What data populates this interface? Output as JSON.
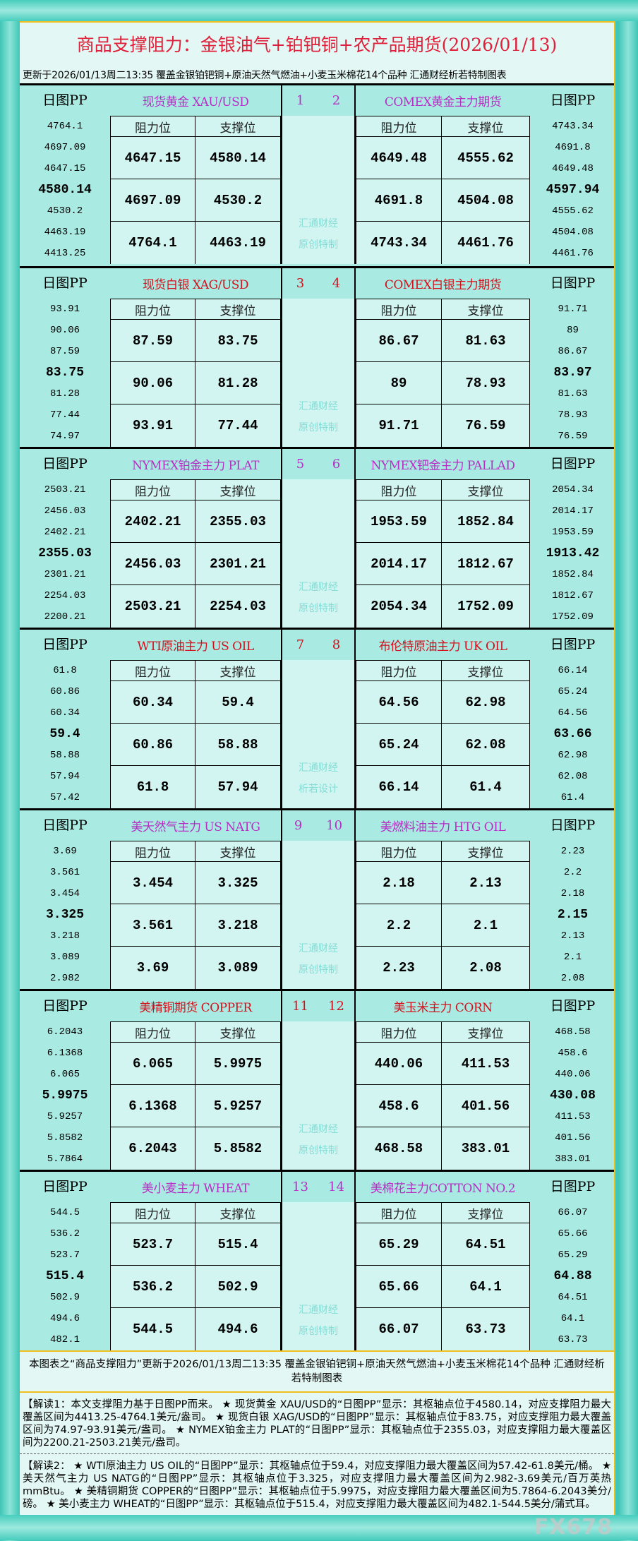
{
  "header": {
    "title": "商品支撑阻力：金银油气+铂钯铜+农产品期货(2026/01/13)",
    "subtitle": "更新于2026/01/13周二13:35  覆盖金银铂钯铜+原油天然气燃油+小麦玉米棉花14个品种  汇通财经析若特制图表"
  },
  "labels": {
    "pp": "日图PP",
    "resistance": "阻力位",
    "support": "支撑位"
  },
  "colors": {
    "purple": "#b62fc4",
    "red": "#d4101c",
    "watermark": "#86dcd6"
  },
  "blocks": [
    {
      "color": "purple",
      "watermark": [
        "汇通财经",
        "原创特制"
      ],
      "left": {
        "name": "现货黄金  XAU/USD",
        "num": "1",
        "pp": [
          "4764.1",
          "4697.09",
          "4647.15",
          "4580.14",
          "4530.2",
          "4463.19",
          "4413.25"
        ],
        "resistance": [
          "4647.15",
          "4697.09",
          "4764.1"
        ],
        "support": [
          "4580.14",
          "4530.2",
          "4463.19"
        ]
      },
      "right": {
        "name": "COMEX黄金主力期货",
        "num": "2",
        "pp": [
          "4743.34",
          "4691.8",
          "4649.48",
          "4597.94",
          "4555.62",
          "4504.08",
          "4461.76"
        ],
        "resistance": [
          "4649.48",
          "4691.8",
          "4743.34"
        ],
        "support": [
          "4555.62",
          "4504.08",
          "4461.76"
        ]
      }
    },
    {
      "color": "red",
      "watermark": [
        "汇通财经",
        "原创特制"
      ],
      "left": {
        "name": "现货白银  XAG/USD",
        "num": "3",
        "pp": [
          "93.91",
          "90.06",
          "87.59",
          "83.75",
          "81.28",
          "77.44",
          "74.97"
        ],
        "resistance": [
          "87.59",
          "90.06",
          "93.91"
        ],
        "support": [
          "83.75",
          "81.28",
          "77.44"
        ]
      },
      "right": {
        "name": "COMEX白银主力期货",
        "num": "4",
        "pp": [
          "91.71",
          "89",
          "86.67",
          "83.97",
          "81.63",
          "78.93",
          "76.59"
        ],
        "resistance": [
          "86.67",
          "89",
          "91.71"
        ],
        "support": [
          "81.63",
          "78.93",
          "76.59"
        ]
      }
    },
    {
      "color": "purple",
      "watermark": [
        "汇通财经",
        "原创特制"
      ],
      "left": {
        "name": "NYMEX铂金主力  PLAT",
        "num": "5",
        "pp": [
          "2503.21",
          "2456.03",
          "2402.21",
          "2355.03",
          "2301.21",
          "2254.03",
          "2200.21"
        ],
        "resistance": [
          "2402.21",
          "2456.03",
          "2503.21"
        ],
        "support": [
          "2355.03",
          "2301.21",
          "2254.03"
        ]
      },
      "right": {
        "name": "NYMEX钯金主力  PALLAD",
        "num": "6",
        "pp": [
          "2054.34",
          "2014.17",
          "1953.59",
          "1913.42",
          "1852.84",
          "1812.67",
          "1752.09"
        ],
        "resistance": [
          "1953.59",
          "2014.17",
          "2054.34"
        ],
        "support": [
          "1852.84",
          "1812.67",
          "1752.09"
        ]
      }
    },
    {
      "color": "red",
      "watermark": [
        "汇通财经",
        "析若设计"
      ],
      "left": {
        "name": "WTI原油主力  US OIL",
        "num": "7",
        "pp": [
          "61.8",
          "60.86",
          "60.34",
          "59.4",
          "58.88",
          "57.94",
          "57.42"
        ],
        "resistance": [
          "60.34",
          "60.86",
          "61.8"
        ],
        "support": [
          "59.4",
          "58.88",
          "57.94"
        ]
      },
      "right": {
        "name": "布伦特原油主力  UK OIL",
        "num": "8",
        "pp": [
          "66.14",
          "65.24",
          "64.56",
          "63.66",
          "62.98",
          "62.08",
          "61.4"
        ],
        "resistance": [
          "64.56",
          "65.24",
          "66.14"
        ],
        "support": [
          "62.98",
          "62.08",
          "61.4"
        ]
      }
    },
    {
      "color": "purple",
      "watermark": [
        "汇通财经",
        "原创特制"
      ],
      "left": {
        "name": "美天然气主力  US NATG",
        "num": "9",
        "pp": [
          "3.69",
          "3.561",
          "3.454",
          "3.325",
          "3.218",
          "3.089",
          "2.982"
        ],
        "resistance": [
          "3.454",
          "3.561",
          "3.69"
        ],
        "support": [
          "3.325",
          "3.218",
          "3.089"
        ]
      },
      "right": {
        "name": "美燃料油主力  HTG OIL",
        "num": "10",
        "pp": [
          "2.23",
          "2.2",
          "2.18",
          "2.15",
          "2.13",
          "2.1",
          "2.08"
        ],
        "resistance": [
          "2.18",
          "2.2",
          "2.23"
        ],
        "support": [
          "2.13",
          "2.1",
          "2.08"
        ]
      }
    },
    {
      "color": "red",
      "watermark": [
        "汇通财经",
        "原创特制"
      ],
      "left": {
        "name": "美精铜期货  COPPER",
        "num": "11",
        "pp": [
          "6.2043",
          "6.1368",
          "6.065",
          "5.9975",
          "5.9257",
          "5.8582",
          "5.7864"
        ],
        "resistance": [
          "6.065",
          "6.1368",
          "6.2043"
        ],
        "support": [
          "5.9975",
          "5.9257",
          "5.8582"
        ]
      },
      "right": {
        "name": "美玉米主力  CORN",
        "num": "12",
        "pp": [
          "468.58",
          "458.6",
          "440.06",
          "430.08",
          "411.53",
          "401.56",
          "383.01"
        ],
        "resistance": [
          "440.06",
          "458.6",
          "468.58"
        ],
        "support": [
          "411.53",
          "401.56",
          "383.01"
        ]
      }
    },
    {
      "color": "purple",
      "watermark": [
        "汇通财经",
        "原创特制"
      ],
      "left": {
        "name": "美小麦主力  WHEAT",
        "num": "13",
        "pp": [
          "544.5",
          "536.2",
          "523.7",
          "515.4",
          "502.9",
          "494.6",
          "482.1"
        ],
        "resistance": [
          "523.7",
          "536.2",
          "544.5"
        ],
        "support": [
          "515.4",
          "502.9",
          "494.6"
        ]
      },
      "right": {
        "name": "美棉花主力COTTON NO.2",
        "num": "14",
        "pp": [
          "66.07",
          "65.66",
          "65.29",
          "64.88",
          "64.51",
          "64.1",
          "63.73"
        ],
        "resistance": [
          "65.29",
          "65.66",
          "66.07"
        ],
        "support": [
          "64.51",
          "64.1",
          "63.73"
        ]
      }
    }
  ],
  "footer": {
    "note": "本图表之“商品支撑阻力”更新于2026/01/13周二13:35 覆盖金银铂钯铜+原油天然气燃油+小麦玉米棉花14个品种 汇通财经析若特制图表",
    "explanation1": "【解读1：本文支撑阻力基于日图PP而来。 ★ 现货黄金 XAU/USD的“日图PP”显示：其枢轴点位于4580.14，对应支撑阻力最大覆盖区间为4413.25-4764.1美元/盎司。 ★ 现货白银 XAG/USD的“日图PP”显示：其枢轴点位于83.75，对应支撑阻力最大覆盖区间为74.97-93.91美元/盎司。 ★ NYMEX铂金主力 PLAT的“日图PP”显示：其枢轴点位于2355.03，对应支撑阻力最大覆盖区间为2200.21-2503.21美元/盎司。",
    "explanation2": "【解读2： ★ WTI原油主力 US OIL的“日图PP”显示：其枢轴点位于59.4，对应支撑阻力最大覆盖区间为57.42-61.8美元/桶。 ★ 美天然气主力 US NATG的“日图PP”显示：其枢轴点位于3.325，对应支撑阻力最大覆盖区间为2.982-3.69美元/百万英热mmBtu。 ★ 美精铜期货 COPPER的“日图PP”显示：其枢轴点位于5.9975，对应支撑阻力最大覆盖区间为5.7864-6.2043美分/磅。 ★ 美小麦主力 WHEAT的“日图PP”显示：其枢轴点位于515.4，对应支撑阻力最大覆盖区间为482.1-544.5美分/蒲式耳。"
  },
  "logo": "FX678"
}
